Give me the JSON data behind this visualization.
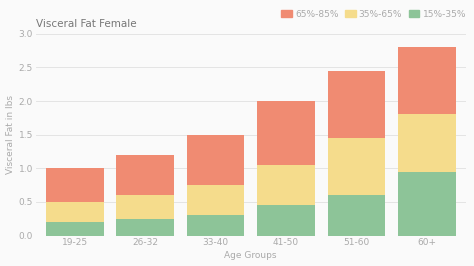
{
  "title": "Visceral Fat Female",
  "xlabel": "Age Groups",
  "ylabel": "Visceral Fat in lbs",
  "categories": [
    "19-25",
    "26-32",
    "33-40",
    "41-50",
    "51-60",
    "60+"
  ],
  "segments": {
    "65%-85%": [
      0.5,
      0.6,
      0.75,
      0.95,
      1.0,
      1.0
    ],
    "35%-65%": [
      0.3,
      0.35,
      0.45,
      0.6,
      0.85,
      0.85
    ],
    "15%-35%": [
      0.2,
      0.25,
      0.3,
      0.45,
      0.6,
      0.95
    ]
  },
  "colors": {
    "65%-85%": "#F08B72",
    "35%-65%": "#F5DC8C",
    "15%-35%": "#8DC498"
  },
  "legend_labels": [
    "65%-85%",
    "35%-65%",
    "15%-35%"
  ],
  "ylim": [
    0.0,
    3.0
  ],
  "yticks": [
    0.0,
    0.5,
    1.0,
    1.5,
    2.0,
    2.5,
    3.0
  ],
  "background_color": "#fafafa",
  "grid_color": "#e0e0e0",
  "title_fontsize": 7.5,
  "label_fontsize": 6.5,
  "tick_fontsize": 6.5,
  "legend_fontsize": 6.5
}
